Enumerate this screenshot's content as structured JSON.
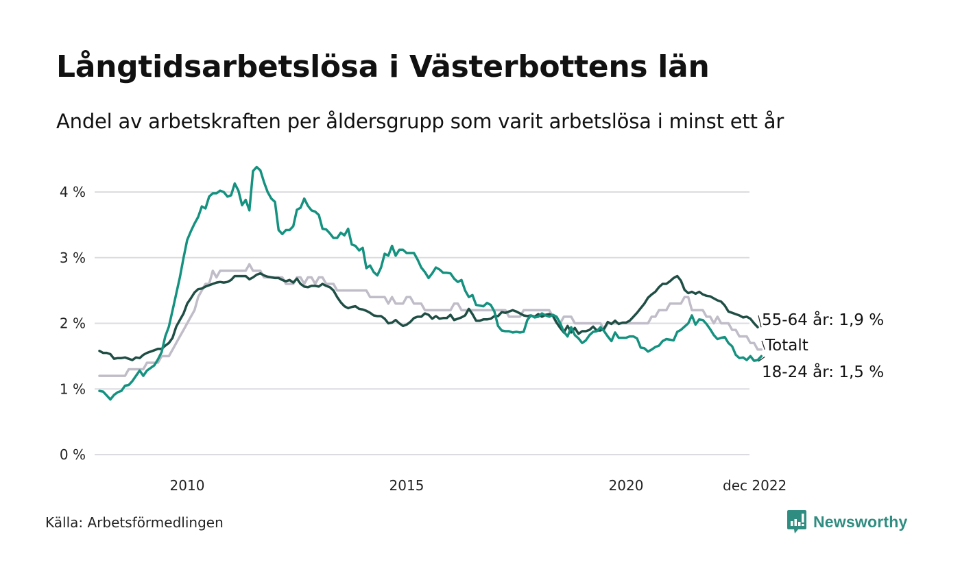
{
  "header": {
    "title": "Långtidsarbetslösa i Västerbottens län",
    "subtitle": "Andel av arbetskraften per åldersgrupp som varit arbetslösa i minst ett år"
  },
  "footer": {
    "source": "Källa: Arbetsförmedlingen",
    "brand": "Newsworthy",
    "brand_icon": "bar-chart-speech-bubble-icon",
    "brand_color": "#2f8c80"
  },
  "chart_data": {
    "type": "line",
    "title": "Långtidsarbetslösa i Västerbottens län",
    "subtitle": "Andel av arbetskraften per åldersgrupp som varit arbetslösa i minst ett år",
    "xlabel": "",
    "ylabel": "",
    "x_start": "2008-01",
    "x_end": "2022-12",
    "x_frequency": "monthly",
    "ylim": [
      0,
      4.4
    ],
    "yticks": [
      0,
      1,
      2,
      3,
      4
    ],
    "ytick_labels": [
      "0 %",
      "1 %",
      "2 %",
      "3 %",
      "4 %"
    ],
    "xticks": [
      {
        "label": "2010",
        "month_index": 24
      },
      {
        "label": "2015",
        "month_index": 84
      },
      {
        "label": "2020",
        "month_index": 144
      },
      {
        "label": "dec 2022",
        "month_index": 179
      }
    ],
    "grid": true,
    "legend": "direct-labels-right",
    "series": [
      {
        "name": "Totalt",
        "label": "Totalt",
        "color": "#c0bcc8",
        "values": [
          1.2,
          1.2,
          1.2,
          1.2,
          1.2,
          1.2,
          1.2,
          1.2,
          1.3,
          1.3,
          1.3,
          1.3,
          1.3,
          1.4,
          1.4,
          1.4,
          1.4,
          1.5,
          1.5,
          1.5,
          1.6,
          1.7,
          1.8,
          1.9,
          2.0,
          2.1,
          2.2,
          2.4,
          2.5,
          2.6,
          2.6,
          2.8,
          2.7,
          2.8,
          2.8,
          2.8,
          2.8,
          2.8,
          2.8,
          2.8,
          2.8,
          2.9,
          2.8,
          2.8,
          2.8,
          2.7,
          2.7,
          2.7,
          2.7,
          2.7,
          2.7,
          2.6,
          2.6,
          2.6,
          2.7,
          2.7,
          2.6,
          2.7,
          2.7,
          2.6,
          2.7,
          2.7,
          2.6,
          2.6,
          2.6,
          2.5,
          2.5,
          2.5,
          2.5,
          2.5,
          2.5,
          2.5,
          2.5,
          2.5,
          2.4,
          2.4,
          2.4,
          2.4,
          2.4,
          2.3,
          2.4,
          2.3,
          2.3,
          2.3,
          2.4,
          2.4,
          2.3,
          2.3,
          2.3,
          2.2,
          2.2,
          2.2,
          2.2,
          2.2,
          2.2,
          2.2,
          2.2,
          2.3,
          2.3,
          2.2,
          2.2,
          2.2,
          2.2,
          2.2,
          2.2,
          2.2,
          2.2,
          2.2,
          2.2,
          2.2,
          2.2,
          2.2,
          2.1,
          2.1,
          2.1,
          2.1,
          2.2,
          2.2,
          2.2,
          2.2,
          2.2,
          2.2,
          2.2,
          2.2,
          2.1,
          2.0,
          2.0,
          2.1,
          2.1,
          2.1,
          2.0,
          2.0,
          2.0,
          2.0,
          2.0,
          2.0,
          2.0,
          2.0,
          1.9,
          2.0,
          2.0,
          2.0,
          2.0,
          2.0,
          2.0,
          2.0,
          2.0,
          2.0,
          2.0,
          2.0,
          2.0,
          2.1,
          2.1,
          2.2,
          2.2,
          2.2,
          2.3,
          2.3,
          2.3,
          2.3,
          2.4,
          2.4,
          2.2,
          2.2,
          2.2,
          2.2,
          2.1,
          2.1,
          2.0,
          2.1,
          2.0,
          2.0,
          2.0,
          1.9,
          1.9,
          1.8,
          1.8,
          1.8,
          1.7,
          1.7,
          1.6,
          1.6
        ]
      },
      {
        "name": "55-64 år",
        "label": "55-64 år: 1,9 %",
        "color": "#1f4e45",
        "values": [
          1.58,
          1.55,
          1.55,
          1.53,
          1.46,
          1.47,
          1.47,
          1.48,
          1.46,
          1.44,
          1.48,
          1.47,
          1.52,
          1.55,
          1.57,
          1.59,
          1.61,
          1.61,
          1.66,
          1.7,
          1.78,
          1.95,
          2.05,
          2.15,
          2.3,
          2.38,
          2.47,
          2.52,
          2.53,
          2.56,
          2.58,
          2.6,
          2.62,
          2.63,
          2.62,
          2.63,
          2.66,
          2.72,
          2.72,
          2.72,
          2.72,
          2.67,
          2.7,
          2.74,
          2.76,
          2.73,
          2.71,
          2.7,
          2.69,
          2.69,
          2.66,
          2.64,
          2.66,
          2.62,
          2.68,
          2.6,
          2.56,
          2.55,
          2.57,
          2.57,
          2.56,
          2.6,
          2.57,
          2.55,
          2.5,
          2.4,
          2.32,
          2.26,
          2.23,
          2.25,
          2.26,
          2.22,
          2.21,
          2.19,
          2.16,
          2.12,
          2.11,
          2.11,
          2.07,
          2.0,
          2.01,
          2.05,
          2.0,
          1.96,
          1.98,
          2.02,
          2.08,
          2.1,
          2.1,
          2.15,
          2.13,
          2.07,
          2.11,
          2.07,
          2.08,
          2.08,
          2.13,
          2.05,
          2.07,
          2.09,
          2.12,
          2.22,
          2.14,
          2.04,
          2.04,
          2.06,
          2.06,
          2.07,
          2.11,
          2.11,
          2.17,
          2.16,
          2.18,
          2.2,
          2.18,
          2.15,
          2.12,
          2.11,
          2.12,
          2.1,
          2.14,
          2.1,
          2.13,
          2.14,
          2.12,
          2.01,
          1.93,
          1.86,
          1.96,
          1.86,
          1.93,
          1.84,
          1.88,
          1.88,
          1.9,
          1.95,
          1.89,
          1.89,
          1.92,
          2.02,
          1.99,
          2.04,
          1.99,
          2.01,
          2.01,
          2.04,
          2.1,
          2.16,
          2.23,
          2.3,
          2.39,
          2.44,
          2.48,
          2.55,
          2.6,
          2.6,
          2.64,
          2.69,
          2.72,
          2.65,
          2.51,
          2.46,
          2.48,
          2.45,
          2.48,
          2.44,
          2.42,
          2.41,
          2.38,
          2.35,
          2.33,
          2.27,
          2.18,
          2.16,
          2.14,
          2.12,
          2.09,
          2.1,
          2.07,
          2.0,
          1.94
        ]
      },
      {
        "name": "18-24 år",
        "label": "18-24 år: 1,5 %",
        "color": "#14917f",
        "values": [
          0.97,
          0.96,
          0.9,
          0.84,
          0.91,
          0.95,
          0.97,
          1.05,
          1.06,
          1.12,
          1.2,
          1.28,
          1.2,
          1.28,
          1.32,
          1.36,
          1.45,
          1.56,
          1.8,
          1.95,
          2.2,
          2.45,
          2.7,
          3.0,
          3.27,
          3.4,
          3.52,
          3.62,
          3.78,
          3.75,
          3.93,
          3.98,
          3.98,
          4.02,
          4.0,
          3.93,
          3.95,
          4.13,
          4.02,
          3.8,
          3.88,
          3.72,
          4.32,
          4.38,
          4.33,
          4.15,
          4.0,
          3.9,
          3.85,
          3.42,
          3.36,
          3.42,
          3.42,
          3.48,
          3.73,
          3.76,
          3.9,
          3.79,
          3.72,
          3.7,
          3.65,
          3.44,
          3.43,
          3.37,
          3.3,
          3.3,
          3.38,
          3.34,
          3.44,
          3.2,
          3.18,
          3.11,
          3.15,
          2.84,
          2.88,
          2.78,
          2.73,
          2.85,
          3.06,
          3.03,
          3.18,
          3.03,
          3.12,
          3.12,
          3.07,
          3.07,
          3.07,
          2.97,
          2.85,
          2.78,
          2.69,
          2.76,
          2.85,
          2.82,
          2.77,
          2.77,
          2.76,
          2.68,
          2.63,
          2.66,
          2.5,
          2.4,
          2.43,
          2.28,
          2.27,
          2.26,
          2.31,
          2.28,
          2.18,
          1.96,
          1.89,
          1.88,
          1.88,
          1.86,
          1.87,
          1.86,
          1.87,
          2.05,
          2.12,
          2.09,
          2.1,
          2.15,
          2.12,
          2.1,
          2.13,
          2.1,
          2.0,
          1.87,
          1.8,
          1.94,
          1.82,
          1.77,
          1.7,
          1.74,
          1.82,
          1.87,
          1.88,
          1.94,
          1.88,
          1.8,
          1.73,
          1.86,
          1.78,
          1.78,
          1.78,
          1.8,
          1.8,
          1.77,
          1.63,
          1.62,
          1.57,
          1.6,
          1.64,
          1.66,
          1.73,
          1.76,
          1.75,
          1.74,
          1.87,
          1.9,
          1.95,
          2.0,
          2.12,
          1.98,
          2.06,
          2.05,
          1.99,
          1.91,
          1.82,
          1.76,
          1.78,
          1.79,
          1.7,
          1.65,
          1.52,
          1.47,
          1.48,
          1.44,
          1.5,
          1.43,
          1.44,
          1.5
        ]
      }
    ]
  }
}
